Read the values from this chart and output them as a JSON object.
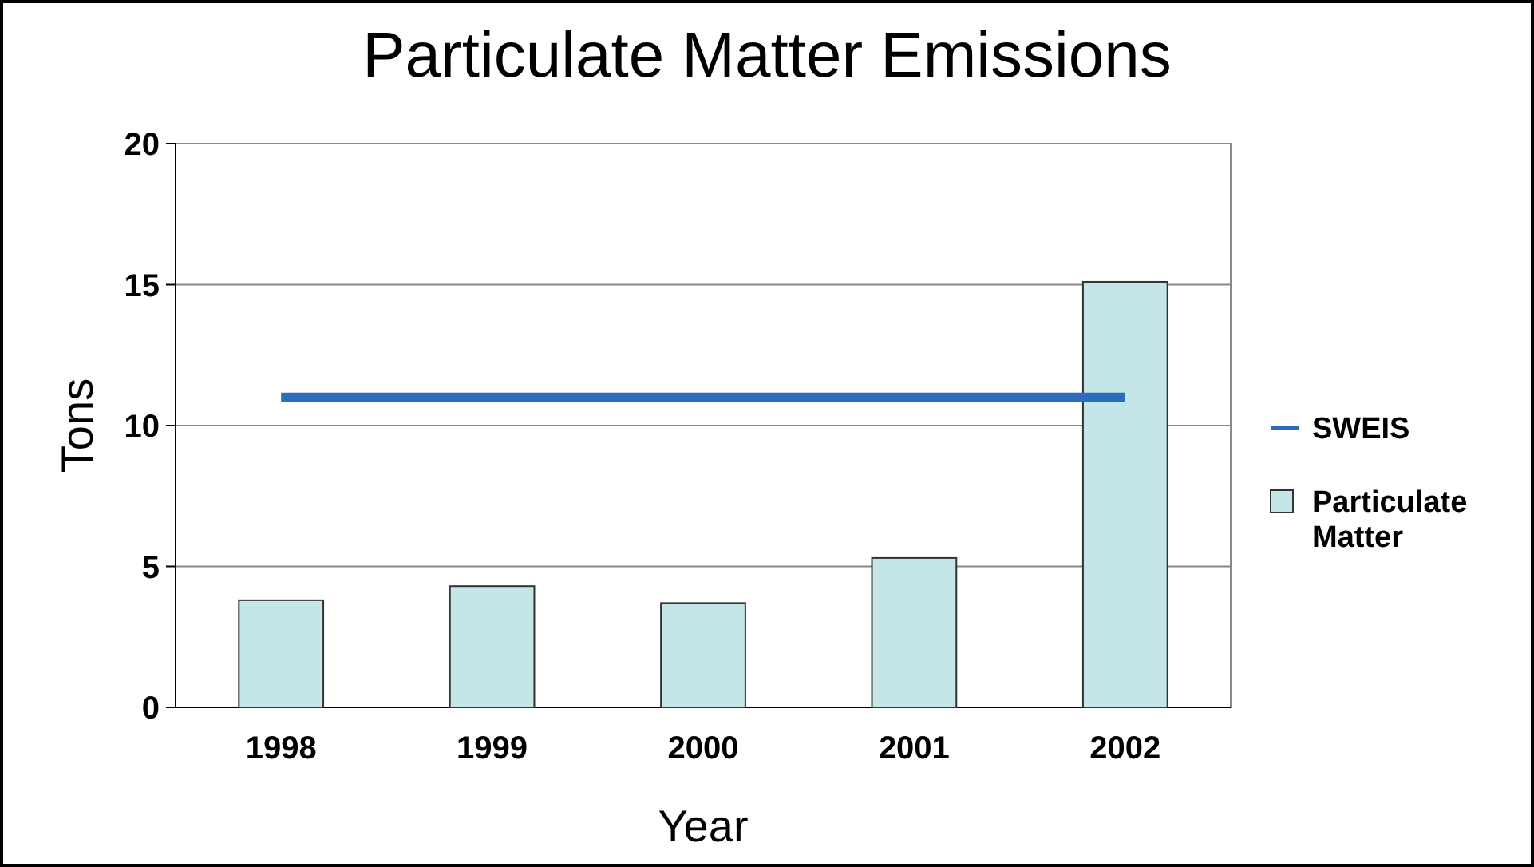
{
  "chart_data": {
    "type": "bar",
    "title": "Particulate Matter Emissions",
    "xlabel": "Year",
    "ylabel": "Tons",
    "categories": [
      "1998",
      "1999",
      "2000",
      "2001",
      "2002"
    ],
    "series": [
      {
        "name": "SWEIS",
        "type": "line",
        "color": "#2a6ebb",
        "values": [
          11,
          11,
          11,
          11,
          11
        ]
      },
      {
        "name": "Particulate Matter",
        "color": "#c5e6e8",
        "values": [
          3.8,
          4.3,
          3.7,
          5.3,
          15.1
        ]
      }
    ],
    "ylim": [
      0,
      20
    ],
    "yticks": [
      0,
      5,
      10,
      15,
      20
    ],
    "grid": "y",
    "legend": "right",
    "marker": "none"
  }
}
